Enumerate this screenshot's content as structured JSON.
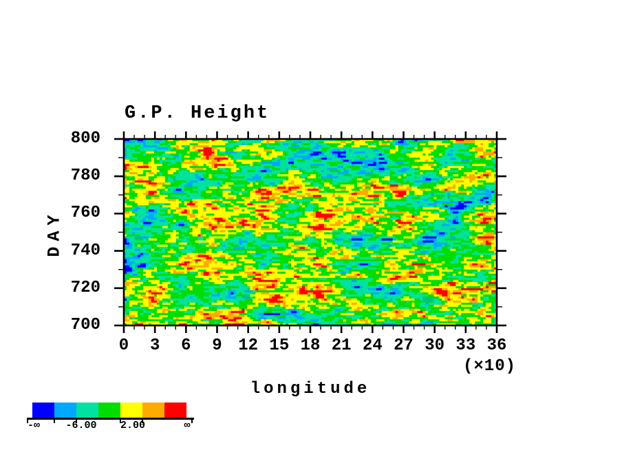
{
  "title": "G.P. Height",
  "y_axis": {
    "label": "DAY",
    "tick_labels": [
      "800",
      "780",
      "760",
      "740",
      "720",
      "700"
    ],
    "tick_values": [
      800,
      780,
      760,
      740,
      720,
      700
    ],
    "range": [
      700,
      800
    ],
    "major_step": 20,
    "minor_step": 10
  },
  "x_axis": {
    "label": "longitude",
    "multiplier": "(×10)",
    "tick_labels": [
      "0",
      "3",
      "6",
      "9",
      "12",
      "15",
      "18",
      "21",
      "24",
      "27",
      "30",
      "33",
      "36"
    ],
    "tick_values": [
      0,
      3,
      6,
      9,
      12,
      15,
      18,
      21,
      24,
      27,
      30,
      33,
      36
    ],
    "range": [
      0,
      36
    ],
    "major_step": 3,
    "minor_step": 1
  },
  "colorbar": {
    "segment_colors": [
      "#0000ff",
      "#00a8ff",
      "#00e2a0",
      "#00dd00",
      "#ffff00",
      "#ffaa00",
      "#ff0000"
    ],
    "labels": [
      "-∞",
      "-6.00",
      "2.00",
      "∞"
    ]
  },
  "chart_data": {
    "type": "heatmap",
    "title": "G.P. Height",
    "xlabel": "longitude",
    "xlabel_note": "(×10)",
    "ylabel": "DAY",
    "xlim": [
      0,
      36
    ],
    "ylim": [
      700,
      800
    ],
    "x_ticks": [
      0,
      3,
      6,
      9,
      12,
      15,
      18,
      21,
      24,
      27,
      30,
      33,
      36
    ],
    "y_ticks": [
      800,
      780,
      760,
      740,
      720,
      700
    ],
    "grid": false,
    "legend_position": "colorbar-bottom-left",
    "colorbar_tick_labels": [
      "-∞",
      "-6.00",
      "2.00",
      "∞"
    ],
    "palette": [
      "#0000ff",
      "#00a8ff",
      "#00e2a0",
      "#00dd00",
      "#ffff00",
      "#ffaa00",
      "#ff0000"
    ],
    "field": {
      "kind": "speckled pseudo-random anomaly field with horizontal streaks (Hovmöller diagram)",
      "generator": {
        "seed": 7,
        "cols": 136,
        "rows": 90,
        "coarse_w": 10,
        "coarse_h": 6,
        "fine_weight": 0.62,
        "coarse_weight": 0.38,
        "vertical_persist": 0.28,
        "color_weights": [
          0.012,
          0.05,
          0.23,
          0.33,
          0.26,
          0.082,
          0.036
        ]
      }
    }
  }
}
